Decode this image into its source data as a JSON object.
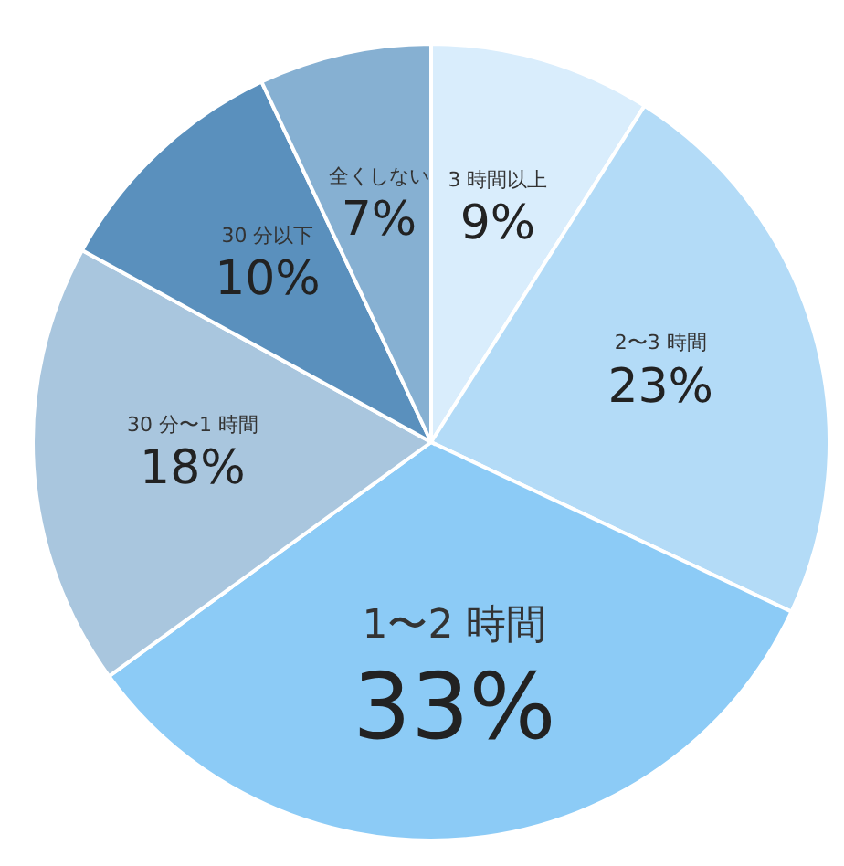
{
  "chart_data": {
    "type": "pie",
    "categories": [
      "3 時間以上",
      "2〜3 時間",
      "1〜2 時間",
      "30 分〜1 時間",
      "30 分以下",
      "全くしない"
    ],
    "values": [
      9,
      23,
      33,
      18,
      10,
      7
    ],
    "value_labels": [
      "9%",
      "23%",
      "33%",
      "18%",
      "10%",
      "7%"
    ],
    "colors": [
      "#d9edfc",
      "#b3dbf7",
      "#8ccbf6",
      "#a9c6de",
      "#5a90bd",
      "#86b0d2"
    ],
    "legend": false
  }
}
